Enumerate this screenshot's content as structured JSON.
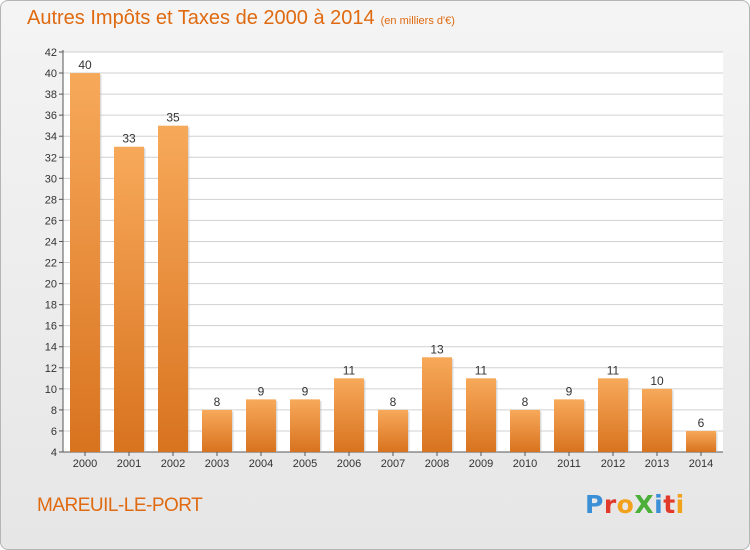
{
  "title": {
    "main": "Autres Impôts et Taxes de 2000 à 2014",
    "unit": "(en milliers d'€)"
  },
  "commune": "MAREUIL-LE-PORT",
  "logo": {
    "text": "ProXiti",
    "letters": [
      {
        "char": "P",
        "color": "#3a8fd6"
      },
      {
        "char": "r",
        "color": "#e23a2a"
      },
      {
        "char": "o",
        "color": "#f2a21a"
      },
      {
        "char": "X",
        "color": "#4caf3a"
      },
      {
        "char": "i",
        "color": "#3a8fd6"
      },
      {
        "char": "t",
        "color": "#e23a2a"
      },
      {
        "char": "i",
        "color": "#f2a21a"
      }
    ]
  },
  "colors": {
    "accent": "#e06a10",
    "bar_light": "#f7a95a",
    "bar_dark": "#d8731f",
    "grid": "#d0d0d0"
  },
  "chart_data": {
    "type": "bar",
    "title": "Autres Impôts et Taxes de 2000 à 2014",
    "subtitle": "(en milliers d'€)",
    "categories": [
      "2000",
      "2001",
      "2002",
      "2003",
      "2004",
      "2005",
      "2006",
      "2007",
      "2008",
      "2009",
      "2010",
      "2011",
      "2012",
      "2013",
      "2014"
    ],
    "values": [
      40,
      33,
      35,
      8,
      9,
      9,
      11,
      8,
      13,
      11,
      8,
      9,
      11,
      10,
      6
    ],
    "ylim": [
      4,
      42
    ],
    "yticks": [
      4,
      6,
      8,
      10,
      12,
      14,
      16,
      18,
      20,
      22,
      24,
      26,
      28,
      30,
      32,
      34,
      36,
      38,
      40,
      42
    ],
    "grid": true,
    "legend": "none"
  }
}
